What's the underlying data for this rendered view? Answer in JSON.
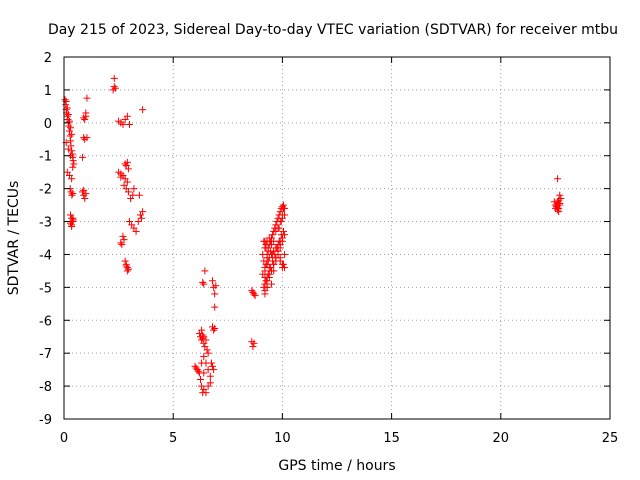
{
  "chart_data": {
    "type": "scatter",
    "title": "Day 215 of 2023, Sidereal Day-to-day VTEC variation (SDTVAR) for receiver mtbu",
    "xlabel": "GPS time / hours",
    "ylabel": "SDTVAR / TECUs",
    "xlim": [
      0,
      25
    ],
    "ylim": [
      -9,
      2
    ],
    "xticks": [
      0,
      5,
      10,
      15,
      20,
      25
    ],
    "yticks": [
      -9,
      -8,
      -7,
      -6,
      -5,
      -4,
      -3,
      -2,
      -1,
      0,
      1,
      2
    ],
    "grid": true,
    "marker": "+",
    "color": "#ff0000",
    "series": [
      {
        "name": "SDTVAR",
        "x": [
          0.05,
          0.08,
          0.1,
          0.12,
          0.15,
          0.18,
          0.2,
          0.22,
          0.25,
          0.28,
          0.3,
          0.32,
          0.35,
          0.38,
          0.4,
          0.42,
          0.45,
          0.1,
          0.15,
          0.2,
          0.25,
          0.3,
          0.35,
          0.1,
          0.2,
          0.3,
          0.15,
          0.25,
          0.35,
          0.4,
          0.28,
          0.32,
          0.36,
          0.4,
          0.3,
          0.35,
          0.4,
          0.3,
          0.35,
          0.38,
          0.42,
          0.35,
          0.4,
          0.85,
          0.9,
          0.95,
          1.0,
          1.05,
          0.85,
          0.9,
          0.95,
          1.0,
          0.9,
          1.0,
          0.95,
          1.05,
          0.9,
          2.25,
          2.3,
          2.35,
          2.3,
          2.5,
          2.6,
          2.7,
          2.8,
          2.9,
          3.0,
          2.6,
          2.7,
          2.8,
          2.9,
          2.5,
          2.6,
          2.75,
          2.85,
          2.95,
          3.05,
          3.15,
          3.2,
          2.8,
          2.85,
          2.9,
          2.95,
          2.7,
          2.75,
          3.0,
          3.1,
          3.2,
          3.3,
          3.4,
          3.5,
          3.55,
          3.6,
          2.6,
          2.65,
          2.8,
          2.85,
          2.9,
          2.9,
          2.85,
          2.95,
          3.6,
          3.45,
          6.0,
          6.05,
          6.1,
          6.15,
          6.2,
          6.25,
          6.3,
          6.35,
          6.2,
          6.25,
          6.3,
          6.35,
          6.3,
          6.4,
          6.45,
          6.5,
          6.55,
          6.6,
          6.4,
          6.5,
          6.6,
          6.7,
          6.4,
          6.5,
          6.6,
          6.7,
          6.3,
          6.4,
          6.35,
          6.4,
          6.45,
          6.8,
          6.85,
          6.9,
          6.95,
          6.8,
          6.9,
          6.85,
          6.9,
          6.75,
          6.8,
          6.85,
          6.4,
          6.35,
          8.6,
          8.65,
          8.7,
          8.75,
          8.6,
          8.7,
          8.65,
          8.7,
          9.1,
          9.15,
          9.2,
          9.25,
          9.3,
          9.35,
          9.4,
          9.45,
          9.5,
          9.55,
          9.6,
          9.65,
          9.7,
          9.75,
          9.8,
          9.85,
          9.9,
          9.95,
          10.0,
          10.05,
          10.1,
          9.2,
          9.3,
          9.4,
          9.5,
          9.6,
          9.7,
          9.8,
          9.9,
          10.0,
          10.1,
          9.2,
          9.3,
          9.4,
          9.5,
          9.6,
          9.7,
          9.8,
          9.9,
          10.0,
          10.1,
          9.15,
          9.25,
          9.35,
          9.45,
          9.55,
          9.65,
          9.75,
          9.85,
          9.95,
          10.05,
          9.2,
          9.3,
          9.4,
          9.5,
          9.6,
          9.7,
          9.8,
          9.9,
          10.0,
          9.2,
          9.25,
          9.3,
          9.35,
          9.4,
          9.5,
          9.6,
          9.7,
          9.9,
          10.0,
          10.05,
          9.85,
          9.95,
          10.0,
          10.05,
          9.8,
          9.9,
          10.0,
          10.1,
          9.1,
          9.2,
          9.3,
          9.5,
          9.6,
          9.7,
          9.8,
          9.9,
          10.0,
          10.1,
          9.15,
          9.25,
          9.35,
          9.45,
          9.55,
          9.2,
          9.3,
          9.4,
          9.2,
          9.3,
          22.45,
          22.5,
          22.55,
          22.6,
          22.65,
          22.7,
          22.75,
          22.5,
          22.55,
          22.6,
          22.65,
          22.7,
          22.6,
          22.65,
          22.7,
          22.55,
          22.6,
          22.65
        ],
        "y": [
          0.7,
          0.55,
          0.4,
          0.3,
          0.2,
          0.1,
          0.0,
          -0.1,
          -0.25,
          -0.4,
          -0.55,
          -0.7,
          -0.85,
          -0.95,
          -1.05,
          -1.15,
          -1.25,
          0.65,
          0.45,
          0.25,
          0.05,
          -0.15,
          -0.35,
          -0.6,
          -0.8,
          -1.0,
          -1.5,
          -1.6,
          -1.7,
          -1.35,
          -2.0,
          -2.1,
          -2.2,
          -2.15,
          -2.8,
          -2.9,
          -3.0,
          -3.05,
          -3.1,
          -3.0,
          -2.95,
          -3.15,
          -2.9,
          -1.05,
          -0.45,
          0.1,
          0.2,
          0.75,
          -2.1,
          -2.2,
          -2.3,
          -2.15,
          0.15,
          0.3,
          -0.5,
          -0.45,
          -2.05,
          1.0,
          1.1,
          1.05,
          1.35,
          0.05,
          0.0,
          -0.05,
          0.1,
          0.2,
          -0.05,
          -1.55,
          -1.6,
          -1.7,
          -1.8,
          -1.5,
          -1.65,
          -1.9,
          -2.0,
          -2.1,
          -2.3,
          -2.2,
          -2.0,
          -1.25,
          -1.3,
          -1.2,
          -1.4,
          -3.45,
          -3.55,
          -3.0,
          -3.1,
          -3.2,
          -3.3,
          -3.0,
          -2.8,
          -2.9,
          -2.7,
          -3.65,
          -3.7,
          -4.2,
          -4.3,
          -4.4,
          -4.5,
          -4.35,
          -4.45,
          0.4,
          -2.2,
          -7.4,
          -7.45,
          -7.5,
          -7.55,
          -7.6,
          -7.8,
          -8.0,
          -8.2,
          -6.4,
          -6.5,
          -6.6,
          -6.55,
          -6.3,
          -6.7,
          -6.8,
          -6.6,
          -6.9,
          -7.0,
          -7.1,
          -7.3,
          -7.5,
          -7.7,
          -8.1,
          -8.2,
          -8.0,
          -7.9,
          -7.3,
          -7.6,
          -4.85,
          -4.9,
          -4.5,
          -4.8,
          -5.0,
          -5.2,
          -4.95,
          -6.2,
          -6.25,
          -6.3,
          -5.6,
          -7.3,
          -7.4,
          -7.5,
          -6.5,
          -6.45,
          -5.1,
          -5.15,
          -5.2,
          -5.25,
          -6.65,
          -6.7,
          -6.8,
          -5.2,
          -4.0,
          -4.2,
          -4.4,
          -4.3,
          -4.1,
          -3.9,
          -3.7,
          -3.6,
          -3.5,
          -3.4,
          -3.3,
          -3.2,
          -3.1,
          -3.0,
          -2.9,
          -2.8,
          -2.7,
          -2.6,
          -2.55,
          -2.5,
          -2.6,
          -3.8,
          -3.6,
          -3.5,
          -3.7,
          -3.6,
          -3.3,
          -3.2,
          -3.0,
          -2.9,
          -2.8,
          -4.5,
          -4.3,
          -4.1,
          -4.0,
          -3.9,
          -3.8,
          -3.7,
          -3.6,
          -3.5,
          -3.4,
          -5.0,
          -4.8,
          -4.6,
          -4.4,
          -4.2,
          -4.0,
          -3.8,
          -3.6,
          -3.4,
          -3.3,
          -5.2,
          -5.0,
          -4.7,
          -4.5,
          -4.3,
          -4.1,
          -3.9,
          -3.7,
          -3.5,
          -3.6,
          -3.8,
          -4.0,
          -4.2,
          -4.4,
          -4.5,
          -4.3,
          -4.1,
          -4.2,
          -4.4,
          -4.3,
          -3.2,
          -3.0,
          -2.8,
          -2.6,
          -3.9,
          -4.1,
          -4.3,
          -4.4,
          -4.6,
          -4.7,
          -4.8,
          -4.9,
          -4.5,
          -4.2,
          -4.0,
          -3.8,
          -3.6,
          -4.0,
          -3.6,
          -3.7,
          -3.8,
          -3.9,
          -4.0,
          -4.9,
          -4.7,
          -4.6,
          -5.1,
          -5.0,
          -2.4,
          -2.5,
          -2.55,
          -2.6,
          -2.7,
          -2.45,
          -2.3,
          -2.6,
          -2.5,
          -2.4,
          -2.45,
          -2.5,
          -2.65,
          -2.35,
          -2.2,
          -2.55,
          -1.7,
          -2.6
        ]
      }
    ]
  }
}
